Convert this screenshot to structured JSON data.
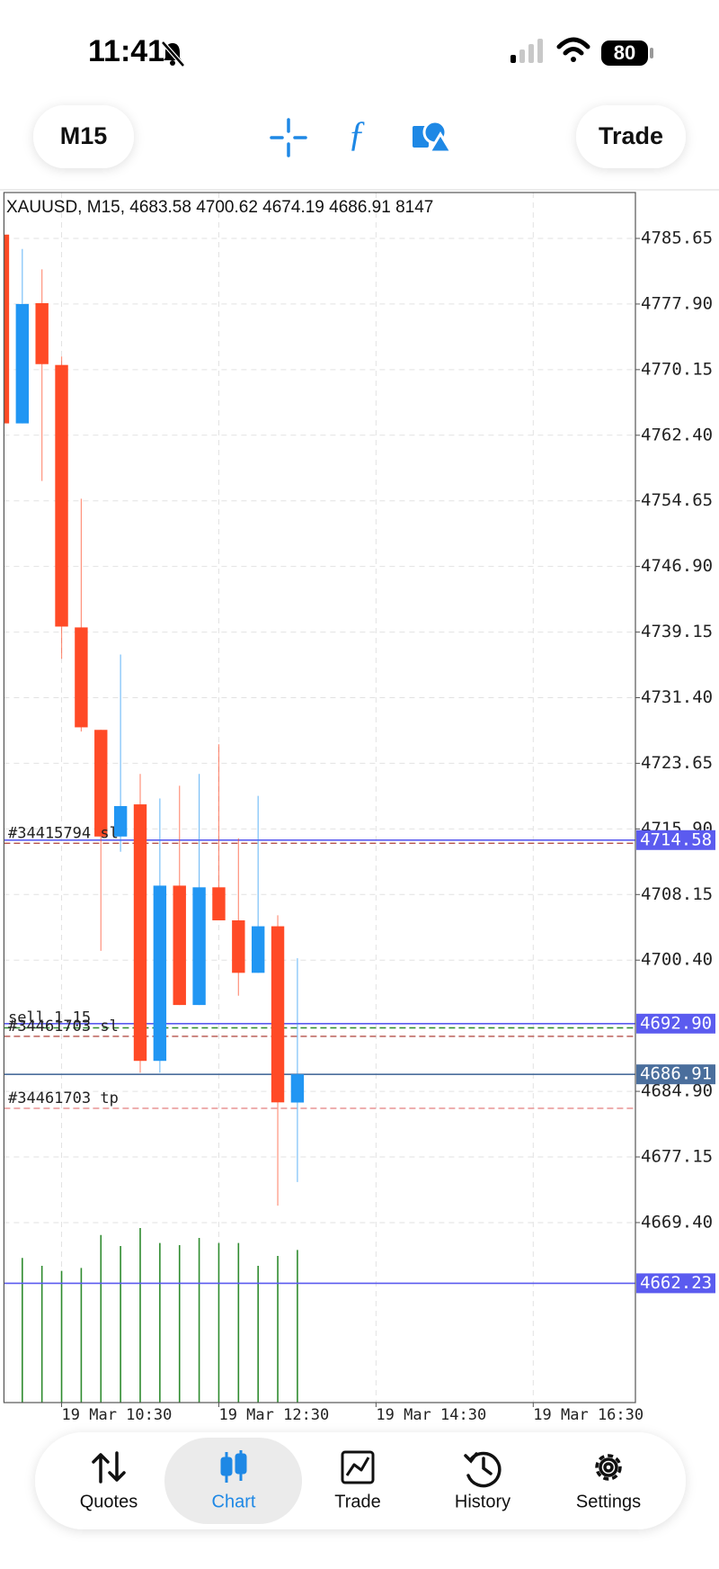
{
  "status_bar": {
    "time": "11:41",
    "battery": "80"
  },
  "toolbar": {
    "timeframe": "M15",
    "trade": "Trade"
  },
  "chart_data": {
    "type": "candlestick",
    "title": "XAUUSD, M15, 4683.58 4700.62 4674.19 4686.91 8147",
    "x": [
      "19 Mar 09:45",
      "19 Mar 10:00",
      "19 Mar 10:15",
      "19 Mar 10:30",
      "19 Mar 10:45",
      "19 Mar 11:00",
      "19 Mar 11:15",
      "19 Mar 11:30",
      "19 Mar 11:45",
      "19 Mar 12:00",
      "19 Mar 12:15",
      "19 Mar 12:30",
      "19 Mar 12:45",
      "19 Mar 13:00",
      "19 Mar 13:15",
      "19 Mar 13:30"
    ],
    "open": [
      4786.1,
      4763.8,
      4778.0,
      4770.7,
      4739.7,
      4727.6,
      4715.0,
      4718.8,
      4688.5,
      4709.2,
      4695.1,
      4709.0,
      4705.1,
      4698.9,
      4704.4,
      4683.58
    ],
    "high": [
      4786.1,
      4784.4,
      4782.0,
      4771.7,
      4754.9,
      4727.6,
      4736.5,
      4722.4,
      4719.5,
      4721.0,
      4722.4,
      4725.9,
      4714.8,
      4719.8,
      4705.7,
      4700.62
    ],
    "low": [
      4763.8,
      4763.8,
      4757.0,
      4736.0,
      4727.4,
      4701.5,
      4713.2,
      4687.1,
      4687.1,
      4695.1,
      4695.1,
      4705.1,
      4696.2,
      4698.9,
      4671.4,
      4674.19
    ],
    "close": [
      4763.8,
      4777.9,
      4770.8,
      4739.8,
      4727.9,
      4715.0,
      4718.6,
      4688.5,
      4709.2,
      4695.1,
      4709.0,
      4705.1,
      4698.9,
      4704.4,
      4683.6,
      4686.91
    ],
    "volume": [
      null,
      7720,
      7300,
      7030,
      7190,
      8950,
      8360,
      9320,
      8520,
      8410,
      8790,
      8520,
      8520,
      7300,
      7830,
      8147
    ],
    "colors": {
      "up": "#2196f3",
      "down": "#ff4a26",
      "volume": "#2e8b2e"
    },
    "xlim": [
      "19 Mar 09:46",
      "19 Mar 17:48"
    ],
    "xticks": [
      "19 Mar 10:30",
      "19 Mar 12:30",
      "19 Mar 14:30",
      "19 Mar 16:30"
    ],
    "ylim": [
      4648.14,
      4791.07
    ],
    "yticks": [
      4785.65,
      {
        "value": 4777.9,
        "label": "4777.90"
      },
      4770.15,
      {
        "value": 4762.4,
        "label": "4762.40"
      },
      4754.65,
      {
        "value": 4746.9,
        "label": "4746.90"
      },
      4739.15,
      {
        "value": 4731.4,
        "label": "4731.40"
      },
      4723.65,
      {
        "value": 4715.9,
        "label": "4715.90"
      },
      4708.15,
      {
        "value": 4700.4,
        "label": "4700.40"
      },
      {
        "value": 4684.9,
        "label": "4684.90"
      },
      4677.15,
      {
        "value": 4669.4,
        "label": "4669.40"
      }
    ],
    "grid": true,
    "orders": [
      {
        "label": "#34415794 sl",
        "price": 4714.2,
        "color": "#b5524a"
      },
      {
        "label": "sell 1.15",
        "price": 4692.4,
        "color": "#2e8b2e"
      },
      {
        "label": "#34461703 sl",
        "price": 4691.4,
        "color": "#b5524a"
      },
      {
        "label": "#34461703 tp",
        "price": 4682.9,
        "color": "#e58a8a"
      }
    ],
    "price_lines": [
      {
        "price": 4714.58,
        "color": "#5b5bef"
      },
      {
        "price": 4692.9,
        "label": "4692.90",
        "color": "#5b5bef"
      },
      {
        "price": 4686.91,
        "color": "#4a6e9c"
      },
      {
        "price": 4662.23,
        "color": "#5b5bef"
      }
    ]
  },
  "tabs": [
    "Quotes",
    "Chart",
    "Trade",
    "History",
    "Settings"
  ]
}
